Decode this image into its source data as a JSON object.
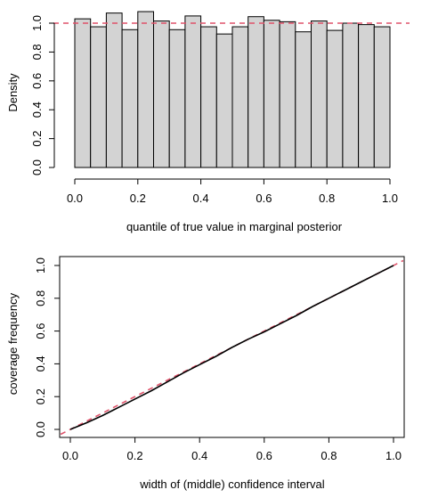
{
  "chart_data": [
    {
      "type": "bar",
      "xlabel": "quantile of true value in marginal posterior",
      "ylabel": "Density",
      "xlim": [
        0,
        1
      ],
      "ylim": [
        0,
        1.08
      ],
      "x_ticks": [
        "0.0",
        "0.2",
        "0.4",
        "0.6",
        "0.8",
        "1.0"
      ],
      "y_ticks": [
        "0.0",
        "0.2",
        "0.4",
        "0.6",
        "0.8",
        "1.0"
      ],
      "bin_width": 0.05,
      "values": [
        1.03,
        0.975,
        1.07,
        0.955,
        1.08,
        1.015,
        0.955,
        1.05,
        0.975,
        0.925,
        0.975,
        1.045,
        1.02,
        1.01,
        0.94,
        1.015,
        0.95,
        1.0,
        0.99,
        0.975
      ],
      "reference_line": {
        "y": 1.0,
        "color": "#df536b",
        "style": "dashed"
      },
      "bar_fill": "#d3d3d3",
      "grid": false
    },
    {
      "type": "line",
      "xlabel": "width of (middle) confidence interval",
      "ylabel": "coverage frequency",
      "xlim": [
        0,
        1
      ],
      "ylim": [
        0,
        1
      ],
      "x_ticks": [
        "0.0",
        "0.2",
        "0.4",
        "0.6",
        "0.8",
        "1.0"
      ],
      "y_ticks": [
        "0.0",
        "0.2",
        "0.4",
        "0.6",
        "0.8",
        "1.0"
      ],
      "series": [
        {
          "color": "#000000",
          "x": [
            0.0,
            0.05,
            0.1,
            0.15,
            0.2,
            0.25,
            0.3,
            0.35,
            0.4,
            0.45,
            0.5,
            0.55,
            0.6,
            0.65,
            0.7,
            0.75,
            0.8,
            0.85,
            0.9,
            0.95,
            1.0
          ],
          "y": [
            0.0,
            0.04,
            0.085,
            0.135,
            0.185,
            0.235,
            0.29,
            0.345,
            0.395,
            0.445,
            0.5,
            0.55,
            0.595,
            0.645,
            0.695,
            0.75,
            0.8,
            0.85,
            0.9,
            0.95,
            1.0
          ]
        }
      ],
      "reference_line": {
        "slope": 1,
        "intercept": 0,
        "color": "#df536b",
        "style": "dashed"
      },
      "grid": false
    }
  ]
}
